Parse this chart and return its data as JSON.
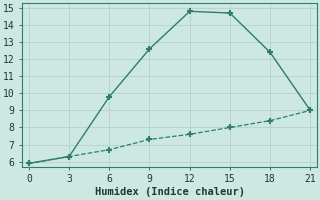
{
  "line1_x": [
    0,
    3,
    6,
    9,
    12,
    15,
    18,
    21
  ],
  "line1_y": [
    5.9,
    6.3,
    9.8,
    12.6,
    14.8,
    14.7,
    12.4,
    9.0
  ],
  "line2_x": [
    0,
    3,
    6,
    9,
    12,
    15,
    18,
    21
  ],
  "line2_y": [
    5.9,
    6.3,
    6.7,
    7.3,
    7.6,
    8.0,
    8.4,
    9.0
  ],
  "line_color": "#2e7d6e",
  "bg_color": "#cce8e0",
  "grid_color": "#b8d4cc",
  "xlabel": "Humidex (Indice chaleur)",
  "xlim": [
    -0.5,
    21.5
  ],
  "ylim": [
    5.7,
    15.3
  ],
  "xticks": [
    0,
    3,
    6,
    9,
    12,
    15,
    18,
    21
  ],
  "yticks": [
    6,
    7,
    8,
    9,
    10,
    11,
    12,
    13,
    14,
    15
  ],
  "font_color": "#1a3a32",
  "xlabel_fontsize": 7.5,
  "tick_fontsize": 7
}
